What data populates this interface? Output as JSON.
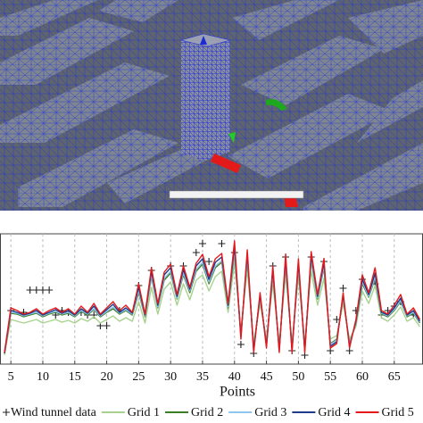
{
  "chart_data": {
    "type": "line",
    "x_label": "Points",
    "x": [
      4,
      5,
      6,
      7,
      8,
      9,
      10,
      11,
      12,
      13,
      14,
      15,
      16,
      17,
      18,
      19,
      20,
      21,
      22,
      23,
      24,
      25,
      26,
      27,
      28,
      29,
      30,
      31,
      32,
      33,
      34,
      35,
      36,
      37,
      38,
      39,
      40,
      41,
      42,
      43,
      44,
      45,
      46,
      47,
      48,
      49,
      50,
      51,
      52,
      53,
      54,
      55,
      56,
      57,
      58,
      59,
      60,
      61,
      62,
      63,
      64,
      65,
      66,
      67,
      68,
      69
    ],
    "xlim": [
      3.3,
      69.5
    ],
    "xticks": [
      5,
      10,
      15,
      20,
      25,
      30,
      35,
      40,
      45,
      50,
      55,
      60,
      65
    ],
    "ylim": [
      0,
      1.46
    ],
    "grid": true,
    "series": [
      {
        "name": "Wind tunnel data",
        "color": "#222222",
        "marker": "+",
        "values": [
          null,
          0.6,
          null,
          0.58,
          0.83,
          0.83,
          0.83,
          0.83,
          0.55,
          0.6,
          0.58,
          null,
          0.58,
          0.55,
          0.55,
          0.43,
          0.43,
          null,
          0.6,
          null,
          null,
          0.88,
          null,
          1.05,
          null,
          null,
          1.1,
          null,
          1.1,
          null,
          1.25,
          1.35,
          1.15,
          null,
          1.35,
          null,
          1.25,
          0.22,
          null,
          0.12,
          null,
          null,
          1.1,
          null,
          1.2,
          0.15,
          null,
          0.1,
          1.2,
          null,
          1.15,
          0.15,
          0.5,
          0.85,
          0.15,
          0.6,
          0.95,
          null,
          0.9,
          0.55,
          0.6,
          0.65,
          0.7,
          null,
          0.55,
          null
        ]
      },
      {
        "name": "Grid 1",
        "color": "#a9d18e",
        "values": [
          0.1,
          0.5,
          0.48,
          0.46,
          0.48,
          0.5,
          0.46,
          0.48,
          0.5,
          0.47,
          0.49,
          0.46,
          0.51,
          0.48,
          0.53,
          0.46,
          0.5,
          0.54,
          0.48,
          0.52,
          0.48,
          0.7,
          0.46,
          0.86,
          0.56,
          0.84,
          0.92,
          0.66,
          0.9,
          0.72,
          0.94,
          1.0,
          0.82,
          0.98,
          1.04,
          0.58,
          1.14,
          0.38,
          1.06,
          0.24,
          0.68,
          0.28,
          0.9,
          0.24,
          1.0,
          0.24,
          0.98,
          0.24,
          1.04,
          0.66,
          0.96,
          0.28,
          0.32,
          0.68,
          0.28,
          0.42,
          0.82,
          0.68,
          0.88,
          0.52,
          0.48,
          0.55,
          0.64,
          0.48,
          0.52,
          0.42
        ]
      },
      {
        "name": "Grid 2",
        "color": "#3b7d23",
        "values": [
          0.12,
          0.57,
          0.56,
          0.53,
          0.55,
          0.57,
          0.53,
          0.56,
          0.58,
          0.55,
          0.57,
          0.53,
          0.59,
          0.55,
          0.61,
          0.53,
          0.58,
          0.62,
          0.56,
          0.6,
          0.55,
          0.8,
          0.53,
          0.98,
          0.63,
          0.94,
          1.02,
          0.73,
          1.0,
          0.8,
          1.04,
          1.12,
          0.9,
          1.08,
          1.14,
          0.63,
          1.26,
          0.33,
          1.18,
          0.18,
          0.75,
          0.23,
          1.0,
          0.18,
          1.12,
          0.18,
          1.08,
          0.18,
          1.16,
          0.73,
          1.08,
          0.23,
          0.28,
          0.75,
          0.23,
          0.46,
          0.9,
          0.75,
          0.96,
          0.56,
          0.53,
          0.6,
          0.7,
          0.53,
          0.57,
          0.46
        ]
      },
      {
        "name": "Grid 3",
        "color": "#8fc5ea",
        "values": [
          0.12,
          0.58,
          0.57,
          0.54,
          0.56,
          0.58,
          0.54,
          0.57,
          0.59,
          0.56,
          0.58,
          0.54,
          0.6,
          0.56,
          0.62,
          0.54,
          0.59,
          0.64,
          0.57,
          0.61,
          0.56,
          0.82,
          0.54,
          1.0,
          0.64,
          0.96,
          1.04,
          0.74,
          1.02,
          0.82,
          1.06,
          1.14,
          0.92,
          1.1,
          1.16,
          0.64,
          1.28,
          0.32,
          1.2,
          0.17,
          0.76,
          0.22,
          1.02,
          0.17,
          1.14,
          0.17,
          1.1,
          0.17,
          1.18,
          0.74,
          1.1,
          0.22,
          0.27,
          0.76,
          0.22,
          0.47,
          0.92,
          0.76,
          0.98,
          0.57,
          0.54,
          0.61,
          0.71,
          0.54,
          0.58,
          0.47
        ]
      },
      {
        "name": "Grid 4",
        "color": "#1f3a8a",
        "values": [
          0.12,
          0.6,
          0.58,
          0.55,
          0.57,
          0.6,
          0.55,
          0.58,
          0.61,
          0.57,
          0.6,
          0.55,
          0.62,
          0.57,
          0.65,
          0.55,
          0.61,
          0.67,
          0.58,
          0.63,
          0.57,
          0.86,
          0.55,
          1.04,
          0.66,
          1.0,
          1.08,
          0.76,
          1.06,
          0.84,
          1.1,
          1.18,
          0.95,
          1.14,
          1.2,
          0.66,
          1.32,
          0.3,
          1.24,
          0.15,
          0.78,
          0.2,
          1.06,
          0.15,
          1.18,
          0.15,
          1.14,
          0.15,
          1.22,
          0.76,
          1.14,
          0.2,
          0.25,
          0.78,
          0.2,
          0.48,
          0.95,
          0.78,
          1.02,
          0.58,
          0.55,
          0.63,
          0.74,
          0.55,
          0.6,
          0.48
        ]
      },
      {
        "name": "Grid 5",
        "color": "#e3191c",
        "values": [
          0.13,
          0.63,
          0.6,
          0.56,
          0.58,
          0.62,
          0.56,
          0.6,
          0.63,
          0.58,
          0.62,
          0.56,
          0.65,
          0.58,
          0.68,
          0.56,
          0.63,
          0.7,
          0.6,
          0.66,
          0.58,
          0.9,
          0.56,
          1.08,
          0.68,
          1.03,
          1.12,
          0.78,
          1.1,
          0.86,
          1.13,
          1.23,
          0.98,
          1.18,
          1.24,
          0.68,
          1.38,
          0.28,
          1.28,
          0.13,
          0.8,
          0.18,
          1.1,
          0.13,
          1.23,
          0.13,
          1.18,
          0.13,
          1.26,
          0.78,
          1.18,
          0.18,
          0.23,
          0.8,
          0.18,
          0.5,
          1.0,
          0.8,
          1.08,
          0.6,
          0.56,
          0.66,
          0.78,
          0.56,
          0.63,
          0.5
        ]
      }
    ]
  }
}
